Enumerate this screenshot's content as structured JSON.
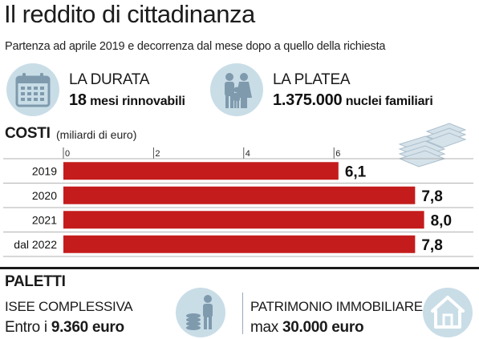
{
  "title": "Il reddito di cittadinanza",
  "subtitle": "Partenza ad aprile 2019 e decorrenza dal mese dopo a quello della richiesta",
  "durata": {
    "heading": "LA DURATA",
    "value_bold": "18",
    "value_rest": "mesi rinnovabili",
    "icon": "calendar-icon"
  },
  "platea": {
    "heading": "LA PLATEA",
    "value_bold": "1.375.000",
    "value_rest": "nuclei familiari",
    "icon": "family-icon"
  },
  "costi": {
    "label": "COSTI",
    "sub": "(miliardi di euro)",
    "icon": "banknotes-icon"
  },
  "chart_data": {
    "type": "bar",
    "orientation": "horizontal",
    "categories": [
      "2019",
      "2020",
      "2021",
      "dal 2022"
    ],
    "values": [
      6.1,
      7.8,
      8.0,
      7.8
    ],
    "value_labels": [
      "6,1",
      "7,8",
      "8,0",
      "7,8"
    ],
    "xticks": [
      "0",
      "2",
      "4",
      "6"
    ],
    "xlim": [
      0,
      8.0
    ],
    "bar_color": "#c41c1c",
    "grid": false
  },
  "paletti": {
    "label": "PALETTI",
    "isee_heading": "ISEE COMPLESSIVA",
    "isee_prefix": "Entro i",
    "isee_value": "9.360 euro",
    "isee_icon": "coins-person-icon",
    "patrimonio_heading": "PATRIMONIO IMMOBILIARE",
    "patrimonio_prefix": "max",
    "patrimonio_value": "30.000 euro",
    "patrimonio_icon": "house-icon"
  },
  "colors": {
    "icon_bg": "#c9dde7",
    "icon_fg": "#7f9aad",
    "bar": "#c41c1c"
  }
}
